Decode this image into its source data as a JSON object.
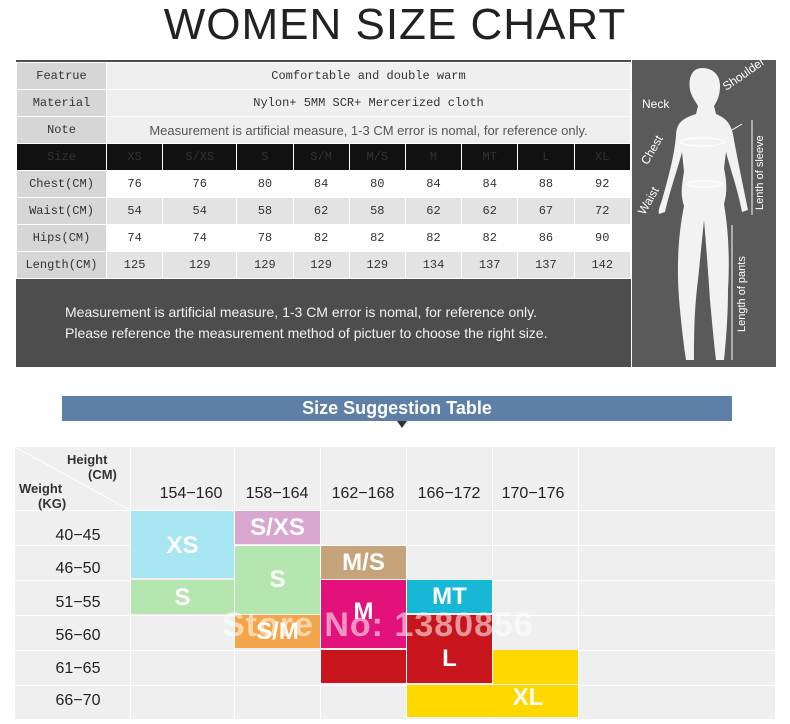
{
  "title": "WOMEN SIZE CHART",
  "spec": {
    "feature_label": "Featrue",
    "feature_value": "Comfortable and double warm",
    "material_label": "Material",
    "material_value": "Nylon+ 5MM SCR+ Mercerized cloth",
    "note_label": "Note",
    "note_value": "Measurement is artificial measure, 1-3 CM error is nomal, for reference only.",
    "size_label": "Size",
    "sizes": [
      "XS",
      "S/XS",
      "S",
      "S/M",
      "M/S",
      "M",
      "MT",
      "L",
      "XL"
    ],
    "rows": [
      {
        "label": "Chest(CM)",
        "values": [
          "76",
          "76",
          "80",
          "84",
          "80",
          "84",
          "84",
          "88",
          "92"
        ]
      },
      {
        "label": "Waist(CM)",
        "values": [
          "54",
          "54",
          "58",
          "62",
          "58",
          "62",
          "62",
          "67",
          "72"
        ]
      },
      {
        "label": "Hips(CM)",
        "values": [
          "74",
          "74",
          "78",
          "82",
          "82",
          "82",
          "82",
          "86",
          "90"
        ]
      },
      {
        "label": "Length(CM)",
        "values": [
          "125",
          "129",
          "129",
          "129",
          "129",
          "134",
          "137",
          "137",
          "142"
        ]
      }
    ],
    "bottom_note_1": "Measurement is artificial measure, 1-3 CM error is nomal, for reference only.",
    "bottom_note_2": "Please reference the measurement method of pictuer to choose the right size."
  },
  "figure": {
    "neck": "Neck",
    "shoulder": "Shoulder",
    "chest": "Chest",
    "waist": "Waist",
    "sleeve": "Lenth of sleeve",
    "pants": "Length of pants"
  },
  "banner": "Size Suggestion Table",
  "suggestion": {
    "height_label": "Height",
    "height_unit": "(CM)",
    "weight_label": "Weight",
    "weight_unit": "(KG)",
    "heights": [
      "154−160",
      "158−164",
      "162−168",
      "166−172",
      "170−176"
    ],
    "weights": [
      "40−45",
      "46−50",
      "51−55",
      "56−60",
      "61−65",
      "66−70"
    ],
    "labels": {
      "xs": "XS",
      "sxs": "S/XS",
      "ms": "M/S",
      "s": "S",
      "s2": "S",
      "mt": "MT",
      "m": "M",
      "sm": "S/M",
      "l": "L",
      "xl": "XL"
    },
    "colors": {
      "xs": "#a8e6f2",
      "sxs": "#d9a6d0",
      "ms": "#c6a47a",
      "s": "#b6e6b0",
      "mt": "#16b8d6",
      "m": "#e2127a",
      "sm": "#f3a54a",
      "l": "#c8141c",
      "xl": "#ffd800"
    }
  },
  "watermark": "Store No: 1380856"
}
